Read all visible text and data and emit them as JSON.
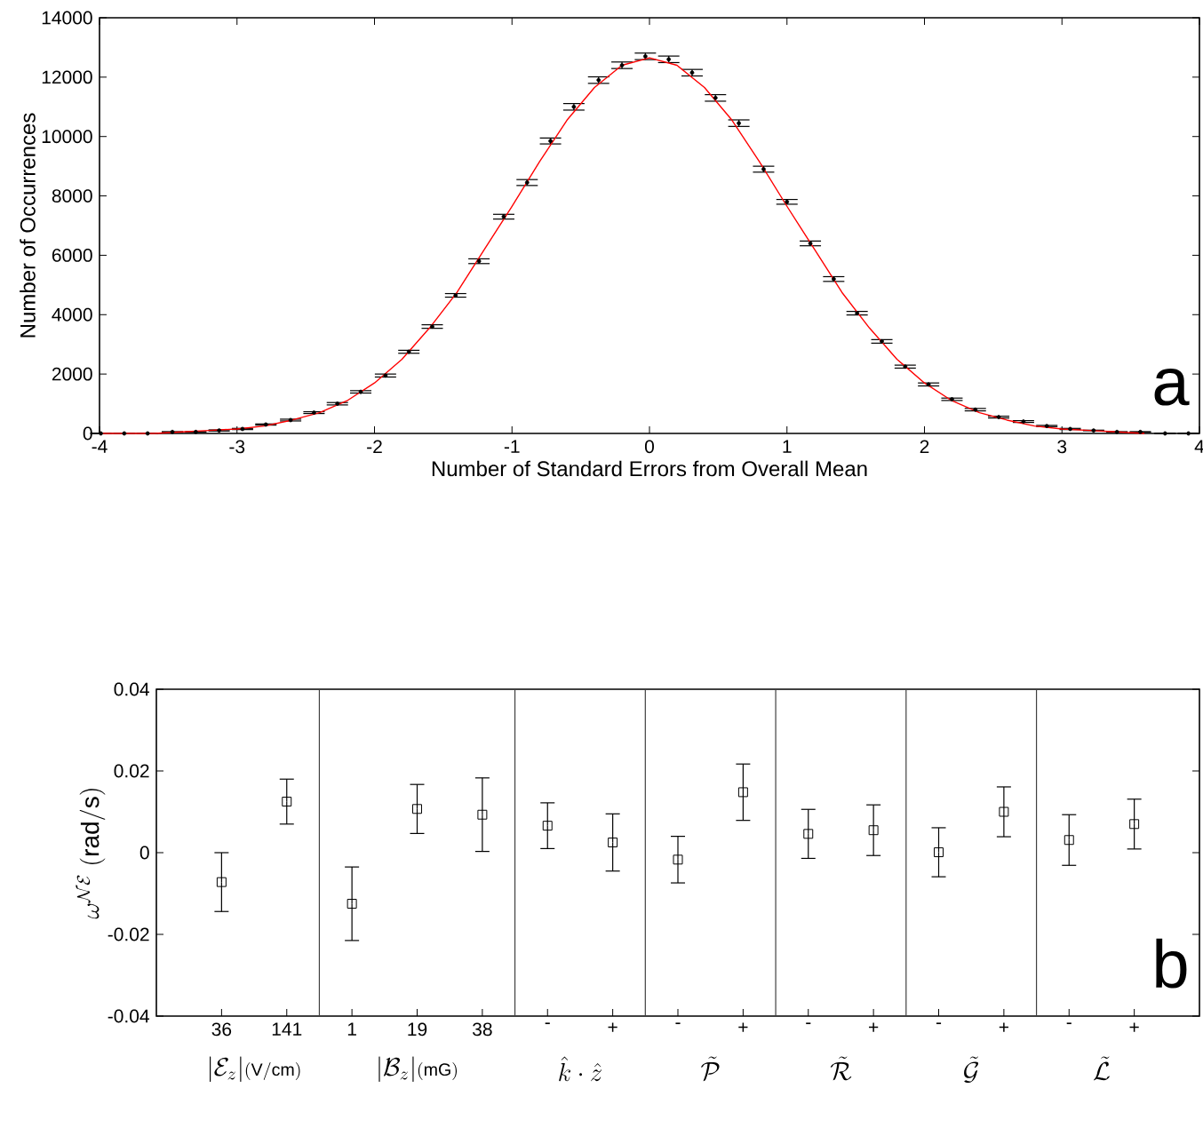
{
  "chart_data": [
    {
      "type": "scatter",
      "xlabel": "Number of Standard Errors from Overall Mean",
      "ylabel": "Number of Occurrences",
      "xlim": [
        -4,
        4
      ],
      "ylim": [
        0,
        14000
      ],
      "xticks": [
        -4,
        -3,
        -2,
        -1,
        0,
        1,
        2,
        3,
        4
      ],
      "yticks": [
        0,
        2000,
        4000,
        6000,
        8000,
        10000,
        12000,
        14000
      ],
      "series": [
        {
          "type": "scatter",
          "marker": "circle",
          "color": "#000000",
          "x": [
            -3.99,
            -3.82,
            -3.65,
            -3.47,
            -3.3,
            -3.13,
            -2.96,
            -2.79,
            -2.61,
            -2.44,
            -2.27,
            -2.1,
            -1.92,
            -1.75,
            -1.58,
            -1.41,
            -1.24,
            -1.06,
            -0.89,
            -0.72,
            -0.55,
            -0.37,
            -0.2,
            -0.03,
            0.14,
            0.31,
            0.48,
            0.65,
            0.83,
            1.0,
            1.17,
            1.34,
            1.51,
            1.69,
            1.86,
            2.03,
            2.2,
            2.37,
            2.54,
            2.72,
            2.89,
            3.06,
            3.23,
            3.4,
            3.57,
            3.75,
            3.92
          ],
          "values": [
            0,
            0,
            0,
            50,
            50,
            100,
            150,
            300,
            450,
            700,
            1000,
            1400,
            1950,
            2750,
            3600,
            4650,
            5800,
            7300,
            8450,
            9850,
            11000,
            11900,
            12400,
            12700,
            12600,
            12150,
            11300,
            10450,
            8900,
            7800,
            6400,
            5200,
            4050,
            3100,
            2250,
            1650,
            1150,
            800,
            550,
            400,
            250,
            150,
            100,
            50,
            50,
            0,
            0
          ],
          "errors": [
            10,
            10,
            10,
            10,
            10,
            20,
            20,
            20,
            30,
            30,
            40,
            40,
            50,
            50,
            60,
            60,
            80,
            80,
            100,
            100,
            110,
            110,
            110,
            110,
            110,
            110,
            110,
            110,
            100,
            80,
            80,
            80,
            60,
            60,
            50,
            50,
            40,
            40,
            30,
            30,
            20,
            20,
            10,
            10,
            10,
            10,
            10
          ]
        },
        {
          "type": "line",
          "marker": "none",
          "color": "#ff0000",
          "x": [
            -4,
            -3.8,
            -3.6,
            -3.4,
            -3.2,
            -3,
            -2.8,
            -2.6,
            -2.4,
            -2.2,
            -2,
            -1.8,
            -1.6,
            -1.4,
            -1.2,
            -1,
            -0.8,
            -0.6,
            -0.4,
            -0.2,
            0,
            0.2,
            0.4,
            0.6,
            0.8,
            1,
            1.2,
            1.4,
            1.6,
            1.8,
            2,
            2.2,
            2.4,
            2.6,
            2.8,
            3,
            3.2,
            3.4,
            3.6
          ],
          "values": [
            0,
            0,
            0,
            50,
            100,
            150,
            250,
            450,
            700,
            1100,
            1700,
            2500,
            3550,
            4750,
            6200,
            7650,
            9150,
            10550,
            11650,
            12400,
            12650,
            12400,
            11650,
            10550,
            9150,
            7650,
            6200,
            4750,
            3550,
            2500,
            1700,
            1100,
            700,
            450,
            250,
            150,
            100,
            50,
            0
          ]
        }
      ],
      "annotations": [
        "a"
      ]
    },
    {
      "type": "scatter",
      "ylabel": "\\omega^{\\mathcal{N}\\mathcal{E}}\\ (\\mathrm{rad/s})",
      "categories": [
        "36",
        "141",
        "1",
        "19",
        "38",
        "-",
        "+",
        "-",
        "+",
        "-",
        "+",
        "-",
        "+",
        "-",
        "+"
      ],
      "ylim": [
        -0.04,
        0.04
      ],
      "yticks": [
        -0.04,
        -0.02,
        0,
        0.02,
        0.04
      ],
      "series": [
        {
          "marker": "square",
          "color": "#000000",
          "values": [
            -0.0072,
            0.0125,
            -0.0125,
            0.0107,
            0.0093,
            0.0066,
            0.0025,
            -0.0017,
            0.0148,
            0.0046,
            0.0055,
            0.0001,
            0.01,
            0.0031,
            0.007
          ],
          "errors": [
            0.0072,
            0.0055,
            0.009,
            0.006,
            0.009,
            0.0056,
            0.007,
            0.0057,
            0.0069,
            0.006,
            0.0062,
            0.006,
            0.0061,
            0.0062,
            0.0061
          ]
        }
      ],
      "annotations": [
        "|\\mathcal{E}_z|\\scriptstyle(\\mathrm{V/cm})",
        "|\\mathcal{B}_z|\\scriptstyle(\\mathrm{mG})",
        "\\hat{k}\\cdot\\hat{z}",
        "\\tilde{\\mathcal{P}}",
        "\\tilde{\\mathcal{R}}",
        "\\tilde{\\mathcal{G}}",
        "\\tilde{\\mathcal{L}}",
        "b"
      ]
    }
  ]
}
